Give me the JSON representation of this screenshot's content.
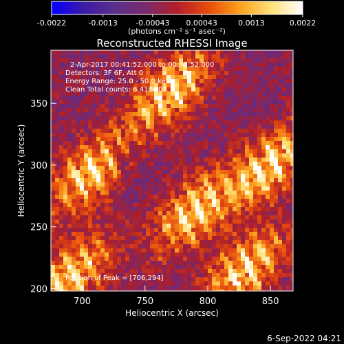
{
  "colorbar": {
    "tick_labels": [
      "-0.0022",
      "-0.0013",
      "-0.00043",
      "0.00043",
      "0.0013",
      "0.0022"
    ],
    "tick_values": [
      -0.0022,
      -0.0013,
      -0.00043,
      0.00043,
      0.0013,
      0.0022
    ],
    "range": [
      -0.0022,
      0.0022
    ],
    "unit_label": "(photons cm⁻² s⁻¹ asec⁻²)",
    "colors": [
      "#0000ff",
      "#3b1aa6",
      "#5a2f8c",
      "#7a2a6e",
      "#b31f2a",
      "#e84b0c",
      "#fca21a",
      "#ffe07a",
      "#ffffff"
    ]
  },
  "chart_data": {
    "type": "heatmap",
    "title": "Reconstructed RHESSI Image",
    "xlabel": "Heliocentric X (arcsec)",
    "ylabel": "Heliocentric Y (arcsec)",
    "xlim": [
      675,
      868
    ],
    "ylim": [
      198,
      393
    ],
    "x_ticks": [
      700,
      750,
      800,
      850
    ],
    "y_ticks": [
      200,
      250,
      300,
      350
    ],
    "x_tick_labels": [
      "700",
      "750",
      "800",
      "850"
    ],
    "y_tick_labels": [
      "200",
      "250",
      "300",
      "350"
    ],
    "grid": false,
    "annotations": [
      "2-Apr-2017 00:41:52.000 to 00:47:52.000",
      "Detectors: 3F 6F, Att 0",
      "Energy Range: 25.0 - 50.0 keV",
      "Clean     Total counts: 6.41E+03"
    ],
    "peak_text": "Position of Peak = [706,294]",
    "peak_position": [
      706,
      294
    ],
    "bright_bands": [
      {
        "x": 706,
        "y": 294
      },
      {
        "x": 770,
        "y": 360
      },
      {
        "x": 790,
        "y": 262
      },
      {
        "x": 850,
        "y": 300
      },
      {
        "x": 830,
        "y": 215
      },
      {
        "x": 690,
        "y": 210
      }
    ]
  },
  "footer": {
    "timestamp": "6-Sep-2022 04:21"
  }
}
